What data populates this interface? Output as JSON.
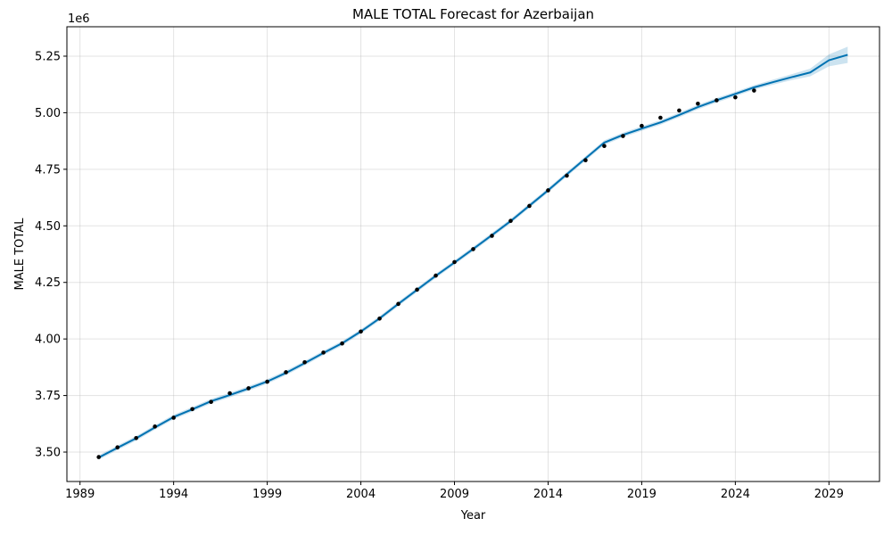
{
  "chart_data": {
    "type": "line",
    "title": "MALE TOTAL Forecast for Azerbaijan",
    "xlabel": "Year",
    "ylabel": "MALE TOTAL",
    "y_offset_label": "1e6",
    "xlim": [
      1988.3,
      2031.7
    ],
    "ylim": [
      3.37,
      5.38
    ],
    "x_ticks": [
      1989,
      1994,
      1999,
      2004,
      2009,
      2014,
      2019,
      2024,
      2029
    ],
    "x_tick_labels": [
      "1989",
      "1994",
      "1999",
      "2004",
      "2009",
      "2014",
      "2019",
      "2024",
      "2029"
    ],
    "y_ticks": [
      3.5,
      3.75,
      4.0,
      4.25,
      4.5,
      4.75,
      5.0,
      5.25
    ],
    "y_tick_labels": [
      "3.50",
      "3.75",
      "4.00",
      "4.25",
      "4.50",
      "4.75",
      "5.00",
      "5.25"
    ],
    "grid": true,
    "colors": {
      "forecast": "#0072B2",
      "interval": "#0072B2",
      "observed": "#000000"
    },
    "series": [
      {
        "type": "scatter",
        "x": [
          1990,
          1991,
          1992,
          1993,
          1994,
          1995,
          1996,
          1997,
          1998,
          1999,
          2000,
          2001,
          2002,
          2003,
          2004,
          2005,
          2006,
          2007,
          2008,
          2009,
          2010,
          2011,
          2012,
          2013,
          2014,
          2015,
          2016,
          2017,
          2018,
          2019,
          2020,
          2021,
          2022,
          2023,
          2024,
          2025
        ],
        "values": [
          3.478,
          3.521,
          3.562,
          3.613,
          3.652,
          3.69,
          3.722,
          3.76,
          3.782,
          3.811,
          3.853,
          3.897,
          3.94,
          3.98,
          4.033,
          4.09,
          4.155,
          4.218,
          4.28,
          4.34,
          4.397,
          4.456,
          4.522,
          4.588,
          4.657,
          4.722,
          4.79,
          4.853,
          4.897,
          4.942,
          4.978,
          5.01,
          5.04,
          5.055,
          5.068,
          5.098
        ]
      },
      {
        "type": "line",
        "x": [
          1990,
          1991,
          1992,
          1993,
          1994,
          1995,
          1996,
          1997,
          1998,
          1999,
          2000,
          2001,
          2002,
          2003,
          2004,
          2005,
          2006,
          2007,
          2008,
          2009,
          2010,
          2011,
          2012,
          2013,
          2014,
          2015,
          2016,
          2017,
          2018,
          2019,
          2020,
          2021,
          2022,
          2023,
          2024,
          2025,
          2026,
          2027,
          2028,
          2029,
          2030
        ],
        "values": [
          3.476,
          3.519,
          3.561,
          3.609,
          3.655,
          3.689,
          3.725,
          3.752,
          3.781,
          3.812,
          3.85,
          3.893,
          3.938,
          3.981,
          4.033,
          4.091,
          4.155,
          4.217,
          4.279,
          4.338,
          4.398,
          4.459,
          4.521,
          4.589,
          4.657,
          4.728,
          4.798,
          4.868,
          4.902,
          4.93,
          4.957,
          4.99,
          5.025,
          5.055,
          5.083,
          5.112,
          5.135,
          5.157,
          5.178,
          5.232,
          5.256
        ],
        "upper": [
          3.486,
          3.529,
          3.571,
          3.619,
          3.665,
          3.699,
          3.735,
          3.762,
          3.791,
          3.822,
          3.86,
          3.903,
          3.948,
          3.991,
          4.043,
          4.101,
          4.165,
          4.227,
          4.289,
          4.348,
          4.408,
          4.469,
          4.531,
          4.599,
          4.667,
          4.738,
          4.808,
          4.878,
          4.912,
          4.94,
          4.967,
          5.0,
          5.035,
          5.065,
          5.093,
          5.122,
          5.146,
          5.17,
          5.195,
          5.258,
          5.292
        ],
        "lower": [
          3.466,
          3.509,
          3.551,
          3.599,
          3.645,
          3.679,
          3.715,
          3.742,
          3.771,
          3.802,
          3.84,
          3.883,
          3.928,
          3.971,
          4.023,
          4.081,
          4.145,
          4.207,
          4.269,
          4.328,
          4.388,
          4.449,
          4.511,
          4.579,
          4.647,
          4.718,
          4.788,
          4.858,
          4.892,
          4.92,
          4.947,
          4.98,
          5.015,
          5.045,
          5.073,
          5.102,
          5.124,
          5.144,
          5.161,
          5.205,
          5.22
        ]
      }
    ]
  }
}
